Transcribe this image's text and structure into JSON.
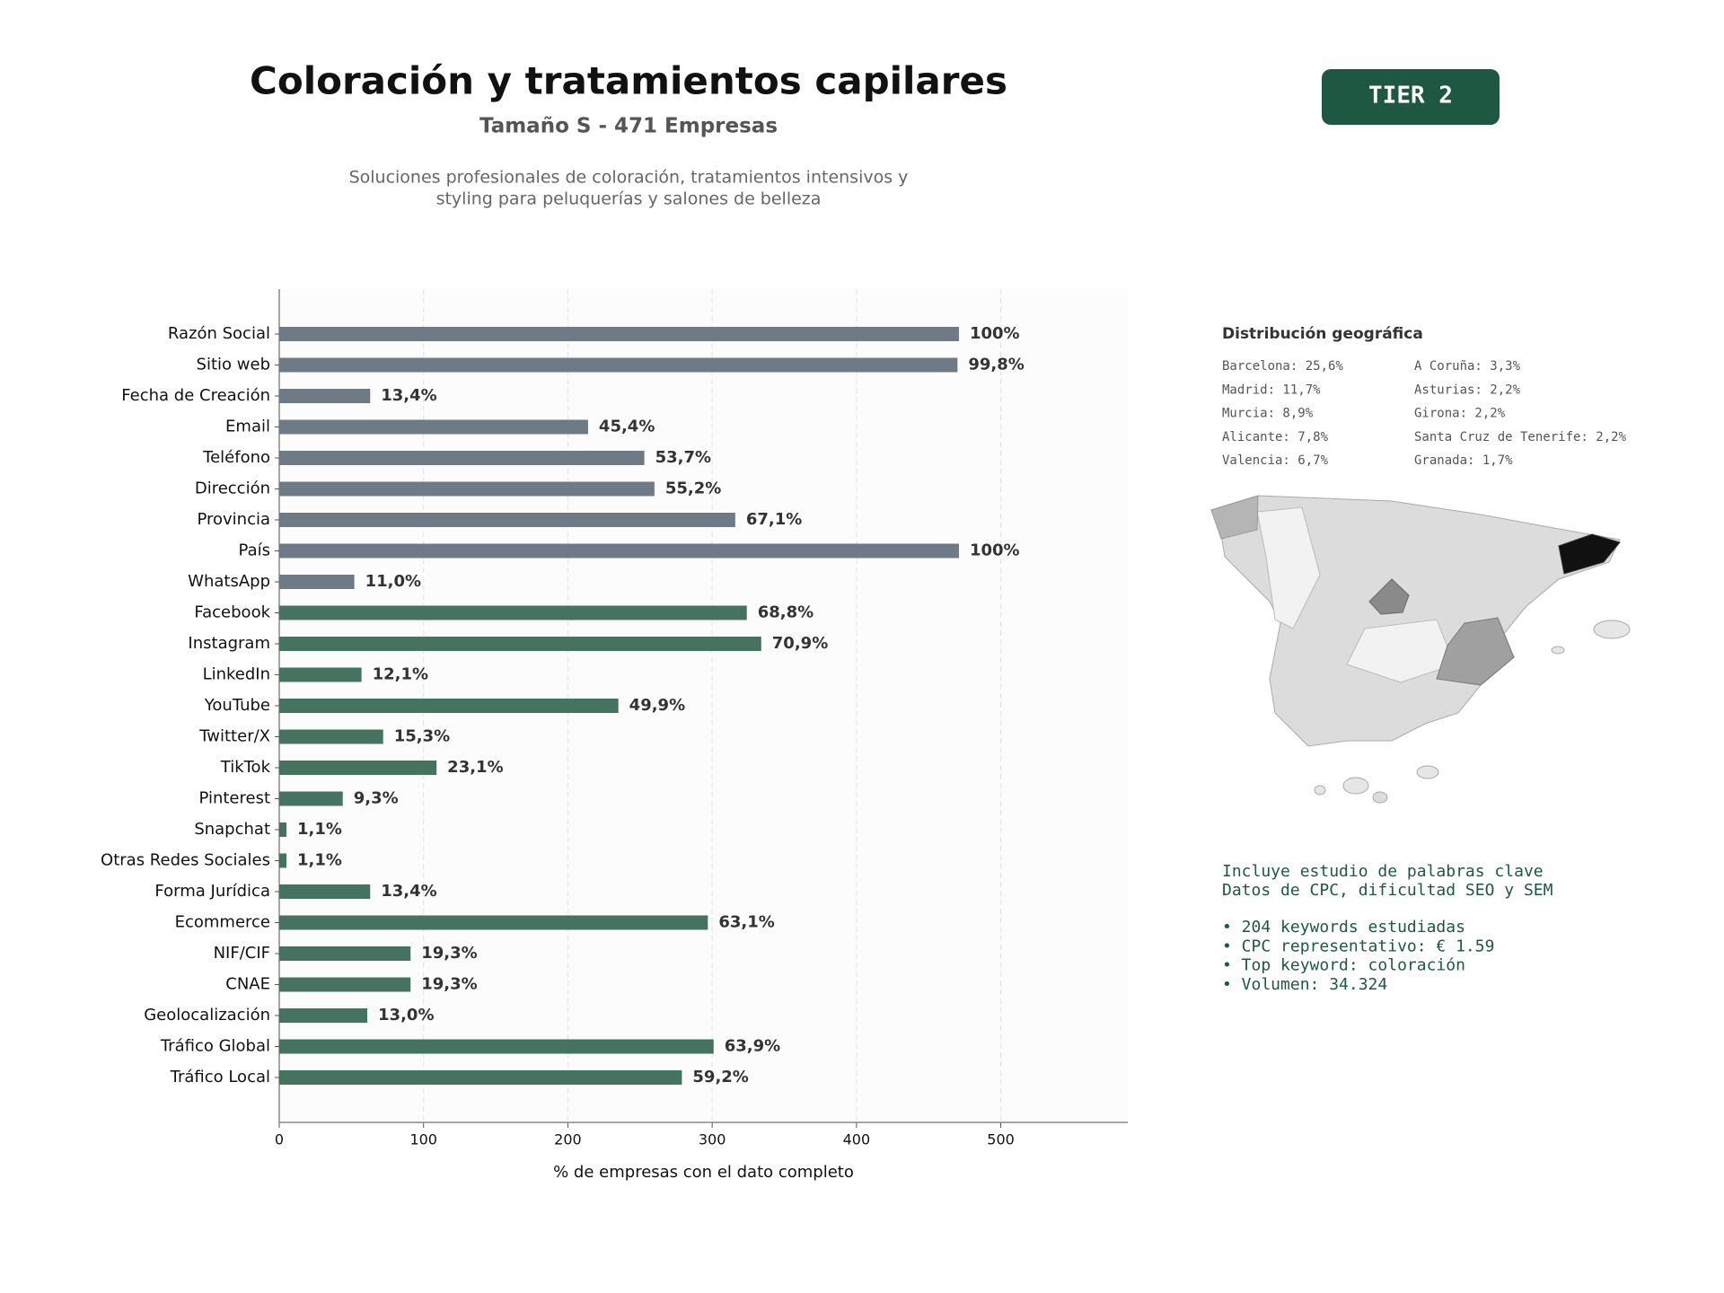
{
  "header": {
    "title": "Coloración y tratamientos capilares",
    "subtitle": "Tamaño S - 471 Empresas",
    "description": [
      "Soluciones profesionales de coloración, tratamientos intensivos y",
      "styling para peluquerías y salones de belleza"
    ],
    "badge": "TIER 2"
  },
  "chart_data": {
    "type": "bar",
    "orientation": "horizontal",
    "categories": [
      "Razón Social",
      "Sitio web",
      "Fecha de Creación",
      "Email",
      "Teléfono",
      "Dirección",
      "Provincia",
      "País",
      "WhatsApp",
      "Facebook",
      "Instagram",
      "LinkedIn",
      "YouTube",
      "Twitter/X",
      "TikTok",
      "Pinterest",
      "Snapchat",
      "Otras Redes Sociales",
      "Forma Jurídica",
      "Ecommerce",
      "NIF/CIF",
      "CNAE",
      "Geolocalización",
      "Tráfico Global",
      "Tráfico Local"
    ],
    "values": [
      471,
      470,
      63,
      214,
      253,
      260,
      316,
      471,
      52,
      324,
      334,
      57,
      235,
      72,
      109,
      44,
      5,
      5,
      63,
      297,
      91,
      91,
      61,
      301,
      279
    ],
    "value_labels": [
      "100%",
      "99,8%",
      "13,4%",
      "45,4%",
      "53,7%",
      "55,2%",
      "67,1%",
      "100%",
      "11,0%",
      "68,8%",
      "70,9%",
      "12,1%",
      "49,9%",
      "15,3%",
      "23,1%",
      "9,3%",
      "1,1%",
      "1,1%",
      "13,4%",
      "63,1%",
      "19,3%",
      "19,3%",
      "13,0%",
      "63,9%",
      "59,2%"
    ],
    "colors": [
      "#6e7a86",
      "#6e7a86",
      "#6e7a86",
      "#6e7a86",
      "#6e7a86",
      "#6e7a86",
      "#6e7a86",
      "#6e7a86",
      "#6e7a86",
      "#46735f",
      "#46735f",
      "#46735f",
      "#46735f",
      "#46735f",
      "#46735f",
      "#46735f",
      "#46735f",
      "#46735f",
      "#46735f",
      "#46735f",
      "#46735f",
      "#46735f",
      "#46735f",
      "#46735f",
      "#46735f"
    ],
    "xlim": [
      0,
      588
    ],
    "xticks": [
      0,
      100,
      200,
      300,
      400,
      500
    ],
    "grid": true,
    "xlabel": "% de empresas con el dato completo"
  },
  "geo": {
    "title": "Distribución geográfica",
    "left": [
      "Barcelona: 25,6%",
      "Madrid: 11,7%",
      "Murcia: 8,9%",
      "Alicante: 7,8%",
      "Valencia: 6,7%"
    ],
    "right": [
      "A Coruña: 3,3%",
      "Asturias: 2,2%",
      "Girona: 2,2%",
      "Santa Cruz de Tenerife: 2,2%",
      "Granada: 1,7%"
    ]
  },
  "keywords": {
    "intro": [
      "Incluye estudio de palabras clave",
      "Datos de CPC, dificultad SEO y SEM"
    ],
    "bullets": [
      "• 204 keywords estudiadas",
      "• CPC representativo: € 1.59",
      "• Top keyword: coloración",
      "• Volumen: 34.324"
    ]
  }
}
